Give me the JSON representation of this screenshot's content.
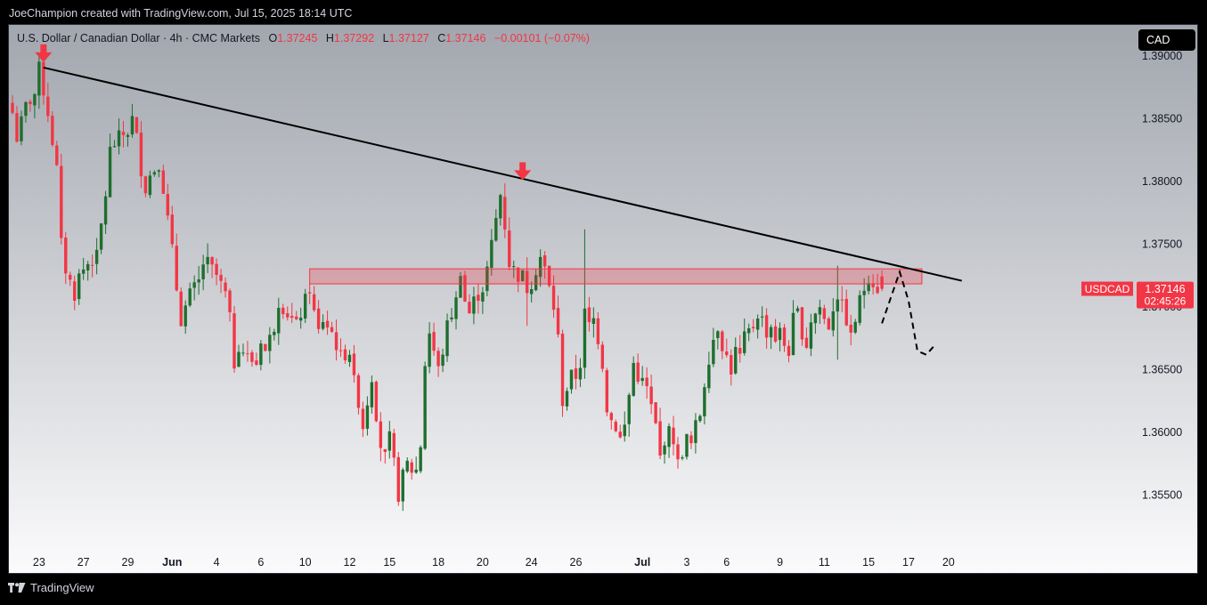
{
  "header": {
    "attribution": "JoeChampion created with TradingView.com, Jul 15, 2025 18:14 UTC"
  },
  "legend": {
    "symbol": "U.S. Dollar / Canadian Dollar · 4h · CMC Markets",
    "open_label": "O",
    "open": "1.37245",
    "high_label": "H",
    "high": "1.37292",
    "low_label": "L",
    "low": "1.37127",
    "close_label": "C",
    "close": "1.37146",
    "change": "−0.00101 (−0.07%)"
  },
  "currency_button": "CAD",
  "price_label": {
    "symbol": "USDCAD",
    "price": "1.37146",
    "countdown": "02:45:26"
  },
  "footer": {
    "brand": "TradingView"
  },
  "colors": {
    "up": "#1e6e2e",
    "down": "#f23645",
    "zone_fill": "rgba(242,54,69,0.28)",
    "zone_stroke": "#f23645",
    "trendline": "#000000",
    "bg_top": "#a2a6ae",
    "bg_bottom": "#fbfbfc"
  },
  "chart_data": {
    "type": "candlestick",
    "ylim": [
      1.3505,
      1.3925
    ],
    "yticks": [
      "1.39000",
      "1.38500",
      "1.38000",
      "1.37500",
      "1.37000",
      "1.36500",
      "1.36000",
      "1.35500"
    ],
    "ytick_values": [
      1.39,
      1.385,
      1.38,
      1.375,
      1.37,
      1.365,
      1.36,
      1.355
    ],
    "x_index_range": [
      0,
      225
    ],
    "xticks": [
      {
        "label": "23",
        "i": 6,
        "bold": false
      },
      {
        "label": "27",
        "i": 16,
        "bold": false
      },
      {
        "label": "29",
        "i": 26,
        "bold": false
      },
      {
        "label": "Jun",
        "i": 36,
        "bold": true
      },
      {
        "label": "4",
        "i": 46,
        "bold": false
      },
      {
        "label": "6",
        "i": 56,
        "bold": false
      },
      {
        "label": "10",
        "i": 66,
        "bold": false
      },
      {
        "label": "12",
        "i": 76,
        "bold": false
      },
      {
        "label": "15",
        "i": 85,
        "bold": false
      },
      {
        "label": "18",
        "i": 96,
        "bold": false
      },
      {
        "label": "20",
        "i": 106,
        "bold": false
      },
      {
        "label": "24",
        "i": 117,
        "bold": false
      },
      {
        "label": "26",
        "i": 127,
        "bold": false
      },
      {
        "label": "Jul",
        "i": 142,
        "bold": true
      },
      {
        "label": "3",
        "i": 152,
        "bold": false
      },
      {
        "label": "6",
        "i": 161,
        "bold": false
      },
      {
        "label": "9",
        "i": 173,
        "bold": false
      },
      {
        "label": "11",
        "i": 183,
        "bold": false
      },
      {
        "label": "15",
        "i": 193,
        "bold": false
      },
      {
        "label": "17",
        "i": 202,
        "bold": false
      },
      {
        "label": "20",
        "i": 211,
        "bold": false
      }
    ],
    "anchors": [
      [
        0,
        1.3855
      ],
      [
        1,
        1.3835
      ],
      [
        3,
        1.386
      ],
      [
        5,
        1.387
      ],
      [
        6,
        1.389
      ],
      [
        8,
        1.3855
      ],
      [
        10,
        1.381
      ],
      [
        11,
        1.375
      ],
      [
        12,
        1.373
      ],
      [
        13,
        1.372
      ],
      [
        14,
        1.371
      ],
      [
        15,
        1.3725
      ],
      [
        17,
        1.3735
      ],
      [
        19,
        1.374
      ],
      [
        20,
        1.3765
      ],
      [
        21,
        1.379
      ],
      [
        22,
        1.3825
      ],
      [
        24,
        1.3835
      ],
      [
        26,
        1.384
      ],
      [
        27,
        1.385
      ],
      [
        28,
        1.3835
      ],
      [
        29,
        1.381
      ],
      [
        30,
        1.3795
      ],
      [
        31,
        1.3805
      ],
      [
        33,
        1.3815
      ],
      [
        34,
        1.3795
      ],
      [
        35,
        1.377
      ],
      [
        36,
        1.3745
      ],
      [
        37,
        1.3715
      ],
      [
        38,
        1.369
      ],
      [
        39,
        1.37
      ],
      [
        40,
        1.371
      ],
      [
        42,
        1.372
      ],
      [
        43,
        1.3735
      ],
      [
        44,
        1.3735
      ],
      [
        46,
        1.3725
      ],
      [
        48,
        1.371
      ],
      [
        49,
        1.369
      ],
      [
        50,
        1.3655
      ],
      [
        51,
        1.367
      ],
      [
        53,
        1.366
      ],
      [
        55,
        1.3655
      ],
      [
        56,
        1.3675
      ],
      [
        57,
        1.3665
      ],
      [
        59,
        1.3685
      ],
      [
        60,
        1.3705
      ],
      [
        62,
        1.3695
      ],
      [
        63,
        1.369
      ],
      [
        64,
        1.3685
      ],
      [
        65,
        1.3695
      ],
      [
        66,
        1.3705
      ],
      [
        67,
        1.3715
      ],
      [
        68,
        1.3695
      ],
      [
        69,
        1.368
      ],
      [
        70,
        1.369
      ],
      [
        72,
        1.368
      ],
      [
        74,
        1.366
      ],
      [
        76,
        1.3665
      ],
      [
        77,
        1.364
      ],
      [
        78,
        1.3625
      ],
      [
        79,
        1.3605
      ],
      [
        80,
        1.3625
      ],
      [
        81,
        1.3645
      ],
      [
        82,
        1.3615
      ],
      [
        83,
        1.359
      ],
      [
        84,
        1.358
      ],
      [
        85,
        1.3595
      ],
      [
        86,
        1.3575
      ],
      [
        87,
        1.355
      ],
      [
        88,
        1.3565
      ],
      [
        89,
        1.3575
      ],
      [
        90,
        1.357
      ],
      [
        91,
        1.357
      ],
      [
        92,
        1.359
      ],
      [
        93,
        1.3655
      ],
      [
        94,
        1.368
      ],
      [
        95,
        1.3665
      ],
      [
        96,
        1.365
      ],
      [
        97,
        1.3665
      ],
      [
        98,
        1.3685
      ],
      [
        99,
        1.3695
      ],
      [
        100,
        1.3705
      ],
      [
        101,
        1.373
      ],
      [
        102,
        1.3705
      ],
      [
        103,
        1.3695
      ],
      [
        104,
        1.3705
      ],
      [
        105,
        1.371
      ],
      [
        106,
        1.3715
      ],
      [
        107,
        1.373
      ],
      [
        108,
        1.375
      ],
      [
        109,
        1.377
      ],
      [
        110,
        1.379
      ],
      [
        111,
        1.3765
      ],
      [
        112,
        1.3735
      ],
      [
        113,
        1.373
      ],
      [
        114,
        1.3725
      ],
      [
        115,
        1.3725
      ],
      [
        116,
        1.3715
      ],
      [
        117,
        1.372
      ],
      [
        118,
        1.373
      ],
      [
        119,
        1.374
      ],
      [
        120,
        1.373
      ],
      [
        121,
        1.3715
      ],
      [
        122,
        1.37
      ],
      [
        123,
        1.3675
      ],
      [
        124,
        1.3625
      ],
      [
        125,
        1.3635
      ],
      [
        126,
        1.3645
      ],
      [
        127,
        1.3645
      ],
      [
        128,
        1.3655
      ],
      [
        129,
        1.3695
      ],
      [
        130,
        1.3685
      ],
      [
        131,
        1.369
      ],
      [
        132,
        1.3675
      ],
      [
        133,
        1.3655
      ],
      [
        134,
        1.362
      ],
      [
        135,
        1.361
      ],
      [
        136,
        1.3605
      ],
      [
        137,
        1.3595
      ],
      [
        138,
        1.3605
      ],
      [
        139,
        1.363
      ],
      [
        140,
        1.3655
      ],
      [
        141,
        1.3645
      ],
      [
        142,
        1.364
      ],
      [
        143,
        1.3635
      ],
      [
        144,
        1.362
      ],
      [
        145,
        1.3605
      ],
      [
        146,
        1.358
      ],
      [
        147,
        1.3595
      ],
      [
        148,
        1.36
      ],
      [
        149,
        1.3595
      ],
      [
        150,
        1.3575
      ],
      [
        151,
        1.3585
      ],
      [
        152,
        1.3595
      ],
      [
        153,
        1.359
      ],
      [
        154,
        1.3605
      ],
      [
        155,
        1.3615
      ],
      [
        156,
        1.364
      ],
      [
        157,
        1.366
      ],
      [
        158,
        1.3675
      ],
      [
        159,
        1.3685
      ],
      [
        160,
        1.367
      ],
      [
        161,
        1.366
      ],
      [
        162,
        1.365
      ],
      [
        163,
        1.3665
      ],
      [
        164,
        1.366
      ],
      [
        165,
        1.3675
      ],
      [
        166,
        1.368
      ],
      [
        167,
        1.3685
      ],
      [
        168,
        1.3695
      ],
      [
        169,
        1.369
      ],
      [
        170,
        1.368
      ],
      [
        171,
        1.3685
      ],
      [
        172,
        1.3675
      ],
      [
        173,
        1.368
      ],
      [
        174,
        1.367
      ],
      [
        175,
        1.3665
      ],
      [
        176,
        1.369
      ],
      [
        177,
        1.3695
      ],
      [
        178,
        1.368
      ],
      [
        179,
        1.367
      ],
      [
        180,
        1.369
      ],
      [
        181,
        1.3695
      ],
      [
        182,
        1.37
      ],
      [
        183,
        1.369
      ],
      [
        184,
        1.3685
      ],
      [
        185,
        1.37
      ],
      [
        186,
        1.371
      ],
      [
        187,
        1.37
      ],
      [
        188,
        1.369
      ],
      [
        189,
        1.3675
      ],
      [
        190,
        1.369
      ],
      [
        191,
        1.3705
      ],
      [
        192,
        1.3715
      ],
      [
        193,
        1.3725
      ],
      [
        194,
        1.372
      ],
      [
        195,
        1.3715
      ]
    ],
    "last_candle": {
      "open": 1.37245,
      "high": 1.37292,
      "low": 1.37127,
      "close": 1.37146
    },
    "extra_wicks": [
      {
        "i": 129,
        "high": 1.3762,
        "low": 1.367
      },
      {
        "i": 186,
        "high": 1.3733,
        "low": 1.3658
      },
      {
        "i": 116,
        "high": 1.3735,
        "low": 1.3685
      }
    ],
    "trendline": {
      "points": [
        [
          7,
          1.3891
        ],
        [
          214,
          1.3721
        ]
      ]
    },
    "resistance_zone": {
      "i_start": 67,
      "i_end": 205,
      "top": 1.37305,
      "bottom": 1.37185
    },
    "swing_markers": [
      {
        "i": 7,
        "price": 1.3891
      },
      {
        "i": 115,
        "price": 1.3797
      }
    ],
    "projection": {
      "points": [
        [
          196,
          1.3687
        ],
        [
          200,
          1.3728
        ],
        [
          202,
          1.3705
        ],
        [
          204,
          1.3665
        ],
        [
          206,
          1.3662
        ],
        [
          208,
          1.367
        ]
      ]
    },
    "current_price": 1.37146
  }
}
